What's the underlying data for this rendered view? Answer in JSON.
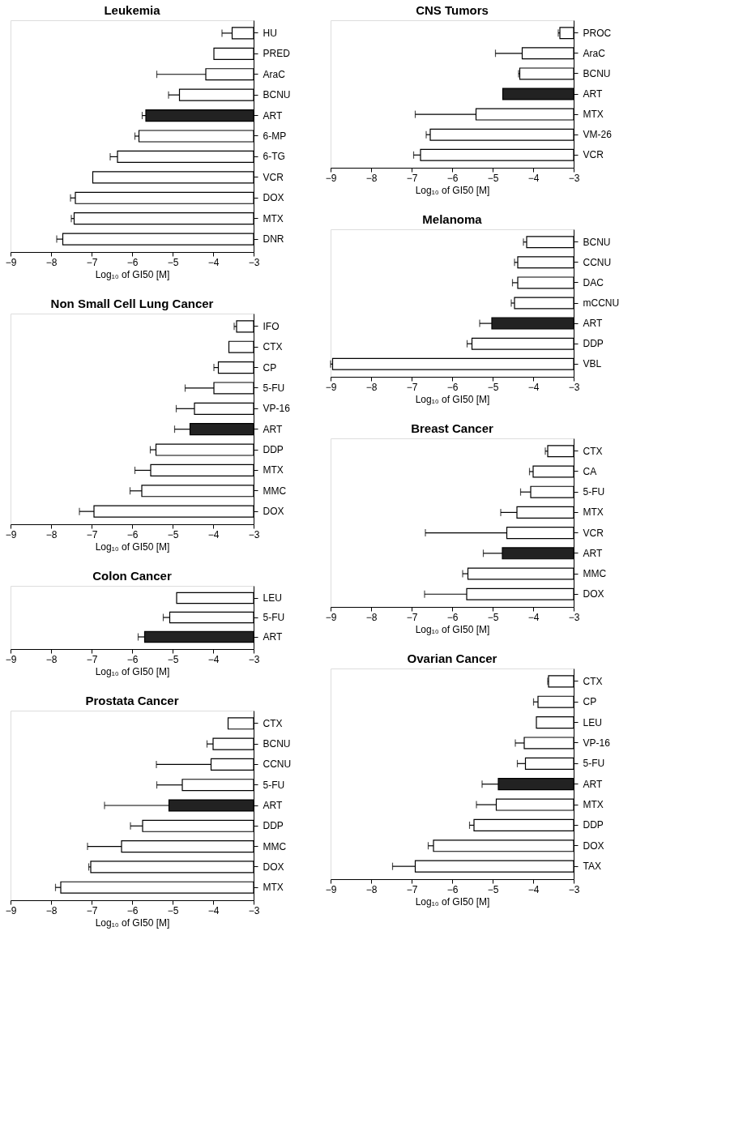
{
  "chart_data": [
    {
      "type": "bar",
      "orientation": "horizontal",
      "title": "Leukemia",
      "xlabel": "Log₁₀ of GI50 [M]",
      "xlim": [
        -9,
        -3
      ],
      "xticks": [
        -9,
        -8,
        -7,
        -6,
        -5,
        -4,
        -3
      ],
      "categories": [
        "HU",
        "PRED",
        "AraC",
        "BCNU",
        "ART",
        "6-MP",
        "6-TG",
        "VCR",
        "DOX",
        "MTX",
        "DNR"
      ],
      "values": [
        -3.53,
        -3.98,
        -4.18,
        -4.83,
        -5.66,
        -5.83,
        -6.36,
        -6.97,
        -7.4,
        -7.43,
        -7.71
      ],
      "errors": [
        [
          -3.78,
          -3.53
        ],
        null,
        [
          -5.39,
          -4.18
        ],
        [
          -5.1,
          -4.83
        ],
        [
          -5.75,
          -5.66
        ],
        [
          -5.93,
          -5.83
        ],
        [
          -6.54,
          -6.36
        ],
        null,
        [
          -7.52,
          -7.4
        ],
        [
          -7.5,
          -7.43
        ],
        [
          -7.86,
          -7.71
        ]
      ],
      "colors": [
        "#ffffff",
        "#ffffff",
        "#ffffff",
        "#ffffff",
        "#222222",
        "#ffffff",
        "#ffffff",
        "#ffffff",
        "#ffffff",
        "#ffffff",
        "#ffffff"
      ]
    },
    {
      "type": "bar",
      "orientation": "horizontal",
      "title": "Non Small Cell Lung Cancer",
      "xlabel": "Log₁₀ of GI50 [M]",
      "xlim": [
        -9,
        -3
      ],
      "xticks": [
        -9,
        -8,
        -7,
        -6,
        -5,
        -4,
        -3
      ],
      "categories": [
        "IFO",
        "CTX",
        "CP",
        "5-FU",
        "VP-16",
        "ART",
        "DDP",
        "MTX",
        "MMC",
        "DOX"
      ],
      "values": [
        -3.42,
        -3.61,
        -3.87,
        -3.98,
        -4.46,
        -4.57,
        -5.41,
        -5.54,
        -5.76,
        -6.94
      ],
      "errors": [
        [
          -3.48,
          -3.42
        ],
        null,
        [
          -3.98,
          -3.87
        ],
        [
          -4.69,
          -3.98
        ],
        [
          -4.91,
          -4.46
        ],
        [
          -4.95,
          -4.57
        ],
        [
          -5.55,
          -5.41
        ],
        [
          -5.93,
          -5.54
        ],
        [
          -6.05,
          -5.76
        ],
        [
          -7.3,
          -6.94
        ]
      ],
      "colors": [
        "#ffffff",
        "#ffffff",
        "#ffffff",
        "#ffffff",
        "#ffffff",
        "#222222",
        "#ffffff",
        "#ffffff",
        "#ffffff",
        "#ffffff"
      ]
    },
    {
      "type": "bar",
      "orientation": "horizontal",
      "title": "Colon Cancer",
      "xlabel": "Log₁₀ of GI50 [M]",
      "xlim": [
        -9,
        -3
      ],
      "xticks": [
        -9,
        -8,
        -7,
        -6,
        -5,
        -4,
        -3
      ],
      "categories": [
        "LEU",
        "5-FU",
        "ART"
      ],
      "values": [
        -4.9,
        -5.07,
        -5.69
      ],
      "errors": [
        null,
        [
          -5.23,
          -5.07
        ],
        [
          -5.85,
          -5.69
        ]
      ],
      "colors": [
        "#ffffff",
        "#ffffff",
        "#222222"
      ]
    },
    {
      "type": "bar",
      "orientation": "horizontal",
      "title": "Prostata Cancer",
      "xlabel": "Log₁₀ of GI50 [M]",
      "xlim": [
        -9,
        -3
      ],
      "xticks": [
        -9,
        -8,
        -7,
        -6,
        -5,
        -4,
        -3
      ],
      "categories": [
        "CTX",
        "BCNU",
        "CCNU",
        "5-FU",
        "ART",
        "DDP",
        "MMC",
        "DOX",
        "MTX"
      ],
      "values": [
        -3.63,
        -4.0,
        -4.05,
        -4.76,
        -5.09,
        -5.74,
        -6.26,
        -7.02,
        -7.76
      ],
      "errors": [
        null,
        [
          -4.15,
          -4.0
        ],
        [
          -5.4,
          -4.05
        ],
        [
          -5.39,
          -4.76
        ],
        [
          -6.68,
          -5.09
        ],
        [
          -6.04,
          -5.74
        ],
        [
          -7.1,
          -6.26
        ],
        [
          -7.07,
          -7.02
        ],
        [
          -7.89,
          -7.76
        ]
      ],
      "colors": [
        "#ffffff",
        "#ffffff",
        "#ffffff",
        "#ffffff",
        "#222222",
        "#ffffff",
        "#ffffff",
        "#ffffff",
        "#ffffff"
      ]
    },
    {
      "type": "bar",
      "orientation": "horizontal",
      "title": "CNS Tumors",
      "xlabel": "Log₁₀ of GI50 [M]",
      "xlim": [
        -9,
        -3
      ],
      "xticks": [
        -9,
        -8,
        -7,
        -6,
        -5,
        -4,
        -3
      ],
      "categories": [
        "PROC",
        "AraC",
        "BCNU",
        "ART",
        "MTX",
        "VM-26",
        "VCR"
      ],
      "values": [
        -3.34,
        -4.27,
        -4.33,
        -4.75,
        -5.41,
        -6.54,
        -6.78
      ],
      "errors": [
        [
          -3.38,
          -3.34
        ],
        [
          -4.93,
          -4.27
        ],
        [
          -4.36,
          -4.33
        ],
        null,
        [
          -6.91,
          -5.41
        ],
        [
          -6.64,
          -6.54
        ],
        [
          -6.95,
          -6.78
        ]
      ],
      "colors": [
        "#ffffff",
        "#ffffff",
        "#ffffff",
        "#222222",
        "#ffffff",
        "#ffffff",
        "#ffffff"
      ]
    },
    {
      "type": "bar",
      "orientation": "horizontal",
      "title": "Melanoma",
      "xlabel": "Log₁₀ of GI50 [M]",
      "xlim": [
        -9,
        -3
      ],
      "xticks": [
        -9,
        -8,
        -7,
        -6,
        -5,
        -4,
        -3
      ],
      "categories": [
        "BCNU",
        "CCNU",
        "DAC",
        "mCCNU",
        "ART",
        "DDP",
        "VBL"
      ],
      "values": [
        -4.16,
        -4.38,
        -4.38,
        -4.46,
        -5.02,
        -5.51,
        -8.95
      ],
      "errors": [
        [
          -4.24,
          -4.16
        ],
        [
          -4.46,
          -4.38
        ],
        [
          -4.51,
          -4.38
        ],
        [
          -4.54,
          -4.46
        ],
        [
          -5.32,
          -5.02
        ],
        [
          -5.63,
          -5.51
        ],
        [
          -9.0,
          -8.95
        ]
      ],
      "colors": [
        "#ffffff",
        "#ffffff",
        "#ffffff",
        "#ffffff",
        "#222222",
        "#ffffff",
        "#ffffff"
      ]
    },
    {
      "type": "bar",
      "orientation": "horizontal",
      "title": "Breast Cancer",
      "xlabel": "Log₁₀ of GI50 [M]",
      "xlim": [
        -9,
        -3
      ],
      "xticks": [
        -9,
        -8,
        -7,
        -6,
        -5,
        -4,
        -3
      ],
      "categories": [
        "CTX",
        "CA",
        "5-FU",
        "MTX",
        "VCR",
        "ART",
        "MMC",
        "DOX"
      ],
      "values": [
        -3.64,
        -4.0,
        -4.06,
        -4.4,
        -4.65,
        -4.76,
        -5.61,
        -5.64
      ],
      "errors": [
        [
          -3.7,
          -3.64
        ],
        [
          -4.09,
          -4.0
        ],
        [
          -4.31,
          -4.06
        ],
        [
          -4.8,
          -4.4
        ],
        [
          -6.66,
          -4.65
        ],
        [
          -5.23,
          -4.76
        ],
        [
          -5.74,
          -5.61
        ],
        [
          -6.68,
          -5.64
        ]
      ],
      "colors": [
        "#ffffff",
        "#ffffff",
        "#ffffff",
        "#ffffff",
        "#ffffff",
        "#222222",
        "#ffffff",
        "#ffffff"
      ]
    },
    {
      "type": "bar",
      "orientation": "horizontal",
      "title": "Ovarian Cancer",
      "xlabel": "Log₁₀ of GI50 [M]",
      "xlim": [
        -9,
        -3
      ],
      "xticks": [
        -9,
        -8,
        -7,
        -6,
        -5,
        -4,
        -3
      ],
      "categories": [
        "CTX",
        "CP",
        "LEU",
        "VP-16",
        "5-FU",
        "ART",
        "MTX",
        "DDP",
        "DOX",
        "TAX"
      ],
      "values": [
        -3.62,
        -3.88,
        -3.92,
        -4.22,
        -4.19,
        -4.86,
        -4.91,
        -5.46,
        -6.46,
        -6.91
      ],
      "errors": [
        [
          -3.64,
          -3.62
        ],
        [
          -3.99,
          -3.88
        ],
        null,
        [
          -4.44,
          -4.22
        ],
        [
          -4.39,
          -4.19
        ],
        [
          -5.26,
          -4.86
        ],
        [
          -5.4,
          -4.91
        ],
        [
          -5.57,
          -5.46
        ],
        [
          -6.59,
          -6.46
        ],
        [
          -7.47,
          -6.91
        ]
      ],
      "colors": [
        "#ffffff",
        "#ffffff",
        "#ffffff",
        "#ffffff",
        "#ffffff",
        "#222222",
        "#ffffff",
        "#ffffff",
        "#ffffff",
        "#ffffff"
      ]
    }
  ]
}
